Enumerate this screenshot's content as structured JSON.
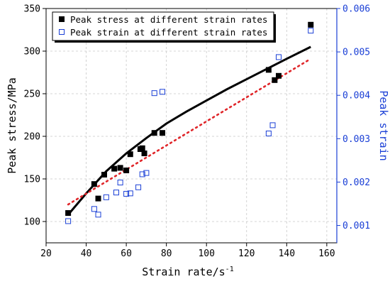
{
  "chart_data": {
    "type": "scatter",
    "x_axis": {
      "label": "Strain rate/s",
      "label_superscript": "-1",
      "range": [
        20,
        165
      ],
      "ticks": [
        20,
        40,
        60,
        80,
        100,
        120,
        140,
        160
      ]
    },
    "y_axis_left": {
      "label": "Peak stress/MPa",
      "range": [
        75,
        350
      ],
      "ticks": [
        100,
        150,
        200,
        250,
        300,
        350
      ],
      "color": "#000000"
    },
    "y_axis_right": {
      "label": "Peak strain",
      "range": [
        0.0006,
        0.006
      ],
      "ticks": [
        0.001,
        0.002,
        0.003,
        0.004,
        0.005,
        0.006
      ],
      "tick_labels": [
        "0.001",
        "0.002",
        "0.003",
        "0.004",
        "0.005",
        "0.006"
      ],
      "color": "#1a3fd6"
    },
    "series": [
      {
        "name": "Peak stress at different strain rates",
        "axis": "left",
        "marker": "filled-square",
        "color": "#000000",
        "points": [
          {
            "x": 31,
            "y": 110
          },
          {
            "x": 44,
            "y": 144
          },
          {
            "x": 46,
            "y": 127
          },
          {
            "x": 49,
            "y": 155
          },
          {
            "x": 54,
            "y": 162
          },
          {
            "x": 57,
            "y": 163
          },
          {
            "x": 60,
            "y": 160
          },
          {
            "x": 62,
            "y": 179
          },
          {
            "x": 67,
            "y": 185
          },
          {
            "x": 68,
            "y": 186
          },
          {
            "x": 69,
            "y": 180
          },
          {
            "x": 74,
            "y": 204
          },
          {
            "x": 78,
            "y": 204
          },
          {
            "x": 131,
            "y": 278
          },
          {
            "x": 134,
            "y": 266
          },
          {
            "x": 136,
            "y": 271
          },
          {
            "x": 152,
            "y": 331
          }
        ]
      },
      {
        "name": "Peak strain at different strain rates",
        "axis": "right",
        "marker": "hollow-square",
        "color": "#1a3fd6",
        "points": [
          {
            "x": 31,
            "y": 0.0011
          },
          {
            "x": 44,
            "y": 0.00138
          },
          {
            "x": 46,
            "y": 0.00125
          },
          {
            "x": 50,
            "y": 0.00165
          },
          {
            "x": 55,
            "y": 0.00176
          },
          {
            "x": 57,
            "y": 0.00199
          },
          {
            "x": 60,
            "y": 0.00173
          },
          {
            "x": 62,
            "y": 0.00174
          },
          {
            "x": 66,
            "y": 0.00188
          },
          {
            "x": 68,
            "y": 0.00218
          },
          {
            "x": 70,
            "y": 0.00221
          },
          {
            "x": 74,
            "y": 0.00405
          },
          {
            "x": 78,
            "y": 0.00408
          },
          {
            "x": 131,
            "y": 0.00312
          },
          {
            "x": 133,
            "y": 0.00331
          },
          {
            "x": 136,
            "y": 0.00488
          },
          {
            "x": 152,
            "y": 0.00549
          }
        ]
      }
    ],
    "fit_lines": [
      {
        "axis": "left",
        "style": "solid",
        "color": "#000000",
        "points": [
          [
            31,
            108
          ],
          [
            40,
            133
          ],
          [
            50,
            159
          ],
          [
            60,
            180
          ],
          [
            70,
            198
          ],
          [
            80,
            215
          ],
          [
            90,
            229
          ],
          [
            100,
            242
          ],
          [
            110,
            255
          ],
          [
            120,
            267
          ],
          [
            130,
            279
          ],
          [
            140,
            291
          ],
          [
            152,
            305
          ]
        ]
      },
      {
        "axis": "left",
        "style": "dotted",
        "color": "#e0262a",
        "points": [
          [
            31,
            120
          ],
          [
            152,
            291
          ]
        ]
      }
    ],
    "legend": {
      "placement": "top-left",
      "entries": [
        "Peak stress at different strain rates",
        "Peak strain at different strain rates"
      ]
    },
    "grid": "dashed"
  }
}
